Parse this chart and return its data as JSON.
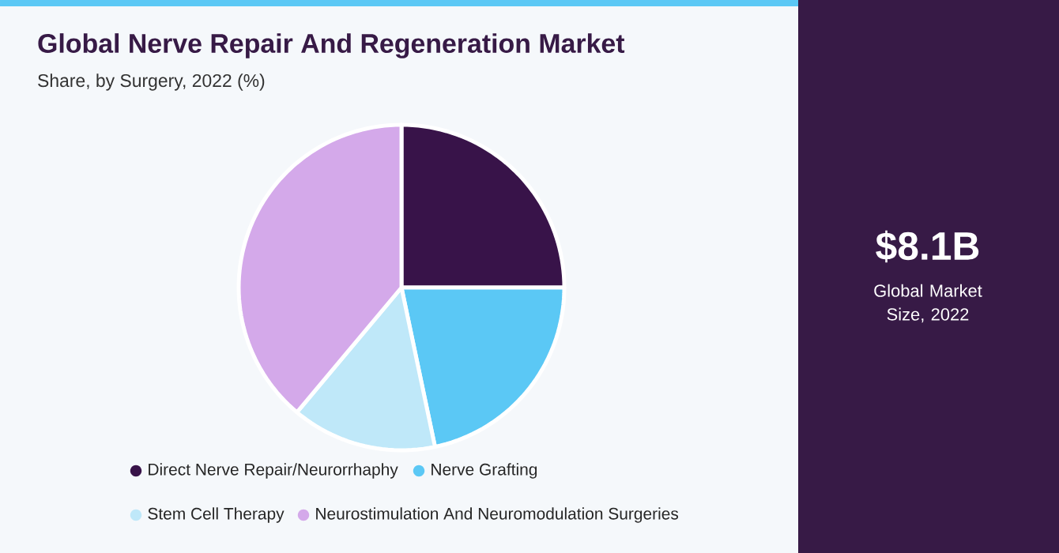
{
  "chart_data": {
    "type": "pie",
    "title": "Global Nerve Repair And Regeneration Market",
    "subtitle": "Share, by Surgery, 2022 (%)",
    "categories": [
      "Direct Nerve Repair/Neurorrhaphy",
      "Nerve Grafting",
      "Stem Cell Therapy",
      "Neurostimulation And Neuromodulation Surgeries"
    ],
    "values": [
      25,
      21.7,
      14.4,
      38.9
    ],
    "colors": [
      "#381349",
      "#5bc8f5",
      "#bfe8f9",
      "#d4a9ea"
    ],
    "legend": "bottom",
    "annotations": [
      "$8.1B",
      "Global Market Size, 2022"
    ]
  }
}
